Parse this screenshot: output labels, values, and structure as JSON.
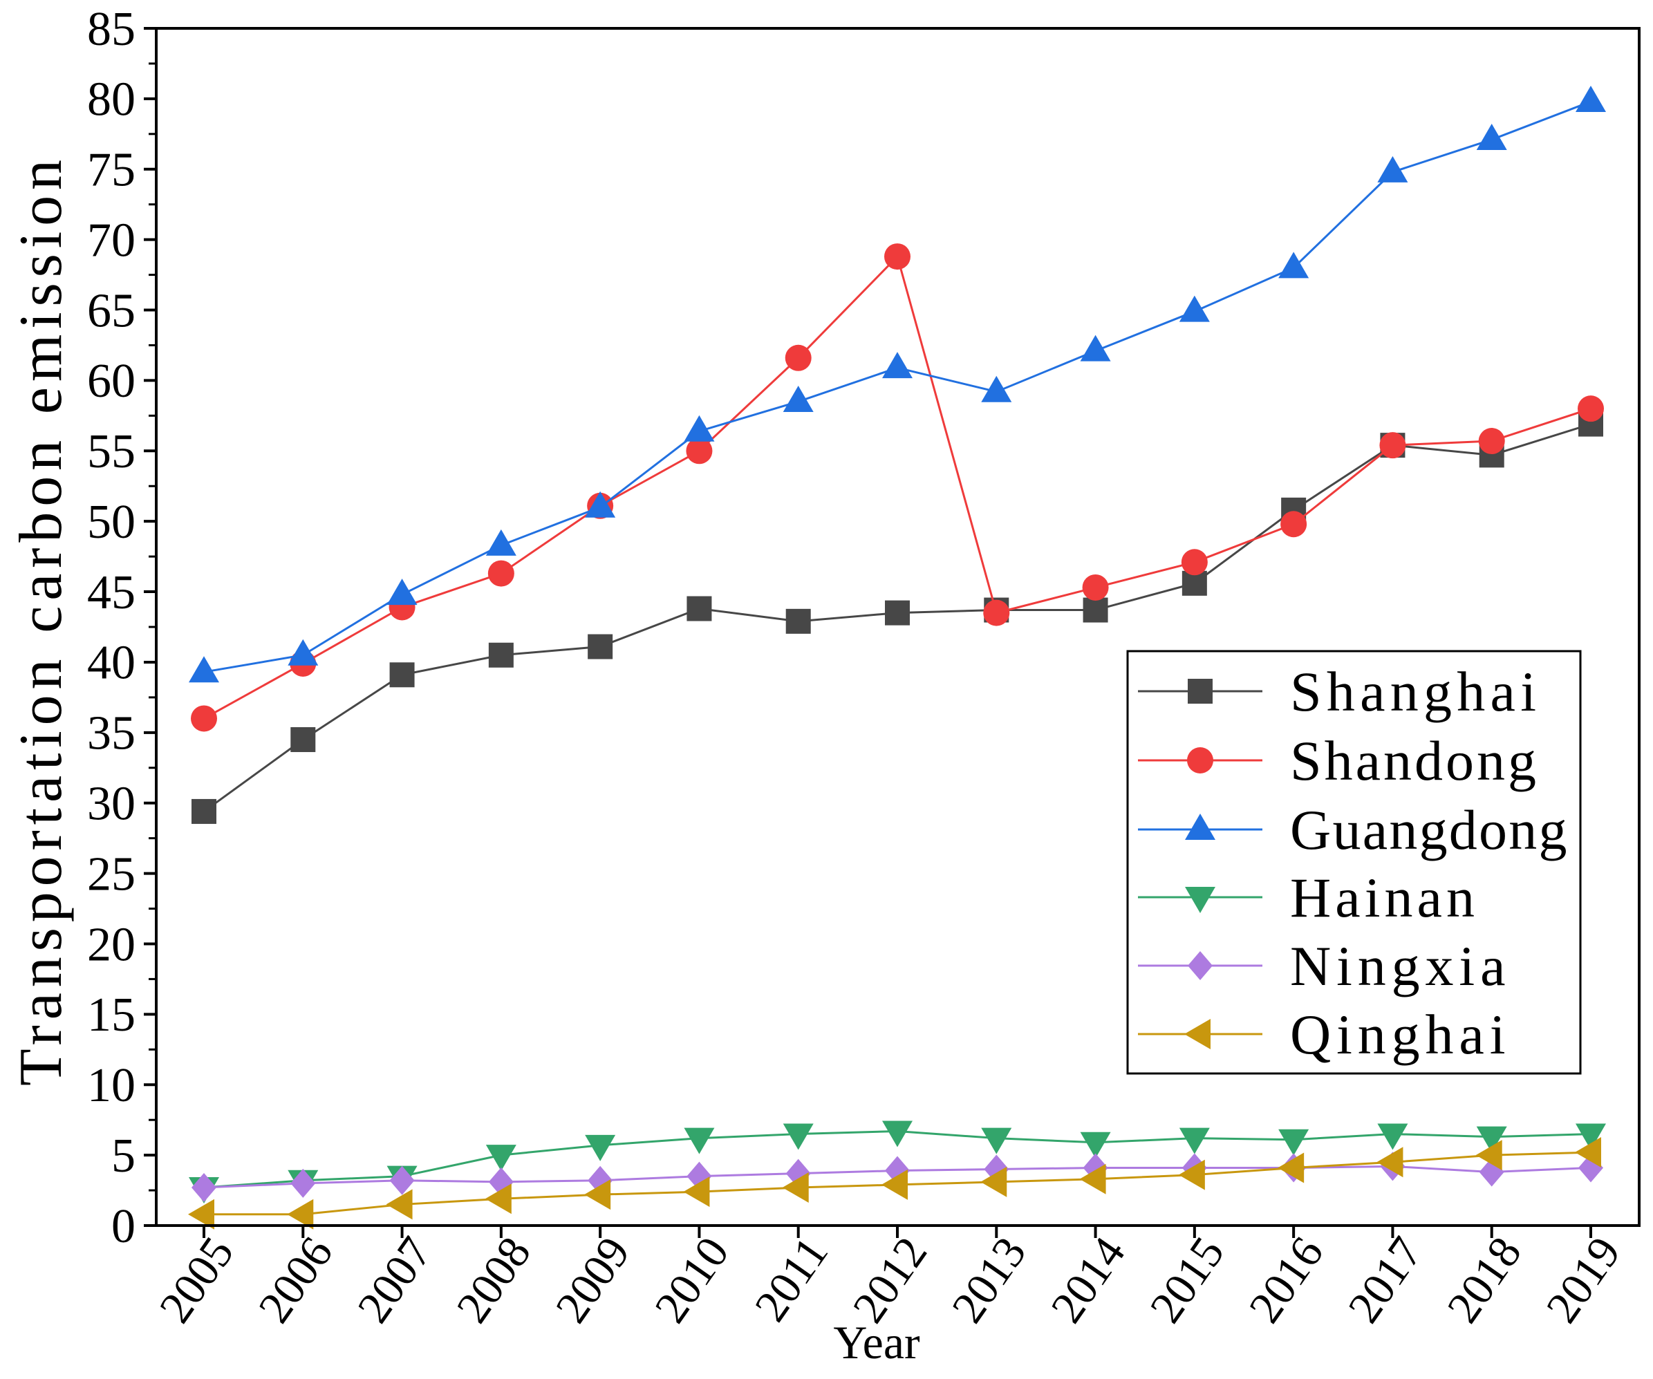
{
  "chart_data": {
    "type": "line",
    "title": "",
    "xlabel": "Year",
    "ylabel": "Transportation carbon emission",
    "x": [
      2005,
      2006,
      2007,
      2008,
      2009,
      2010,
      2011,
      2012,
      2013,
      2014,
      2015,
      2016,
      2017,
      2018,
      2019
    ],
    "ylim": [
      0,
      85
    ],
    "yticks": [
      0,
      5,
      10,
      15,
      20,
      25,
      30,
      35,
      40,
      45,
      50,
      55,
      60,
      65,
      70,
      75,
      80,
      85
    ],
    "grid": false,
    "legend": "right-center",
    "series": [
      {
        "name": "Shanghai",
        "color": "#474747",
        "marker": "square",
        "values": [
          29.4,
          34.5,
          39.1,
          40.5,
          41.1,
          43.8,
          42.9,
          43.5,
          43.7,
          43.7,
          45.6,
          50.8,
          55.4,
          54.7,
          56.9
        ]
      },
      {
        "name": "Shandong",
        "color": "#ef3b3b",
        "marker": "circle",
        "values": [
          36.0,
          39.9,
          43.9,
          46.3,
          51.1,
          55.0,
          61.6,
          68.8,
          43.5,
          45.3,
          47.1,
          49.8,
          55.4,
          55.7,
          58.0
        ]
      },
      {
        "name": "Guangdong",
        "color": "#2170e0",
        "marker": "triangle-up",
        "values": [
          39.3,
          40.5,
          44.8,
          48.3,
          51.0,
          56.4,
          58.5,
          60.9,
          59.2,
          62.1,
          64.9,
          68.0,
          74.8,
          77.1,
          79.8
        ]
      },
      {
        "name": "Hainan",
        "color": "#33a56b",
        "marker": "triangle-down",
        "values": [
          2.7,
          3.2,
          3.5,
          5.0,
          5.7,
          6.2,
          6.5,
          6.7,
          6.2,
          5.9,
          6.2,
          6.1,
          6.5,
          6.3,
          6.5
        ]
      },
      {
        "name": "Ningxia",
        "color": "#ad7be0",
        "marker": "diamond",
        "values": [
          2.7,
          3.0,
          3.2,
          3.1,
          3.2,
          3.5,
          3.7,
          3.9,
          4.0,
          4.1,
          4.1,
          4.1,
          4.2,
          3.8,
          4.1
        ]
      },
      {
        "name": "Qinghai",
        "color": "#c8970e",
        "marker": "triangle-left",
        "values": [
          0.8,
          0.8,
          1.5,
          1.9,
          2.2,
          2.4,
          2.7,
          2.9,
          3.1,
          3.3,
          3.6,
          4.1,
          4.5,
          5.0,
          5.2
        ]
      }
    ]
  }
}
